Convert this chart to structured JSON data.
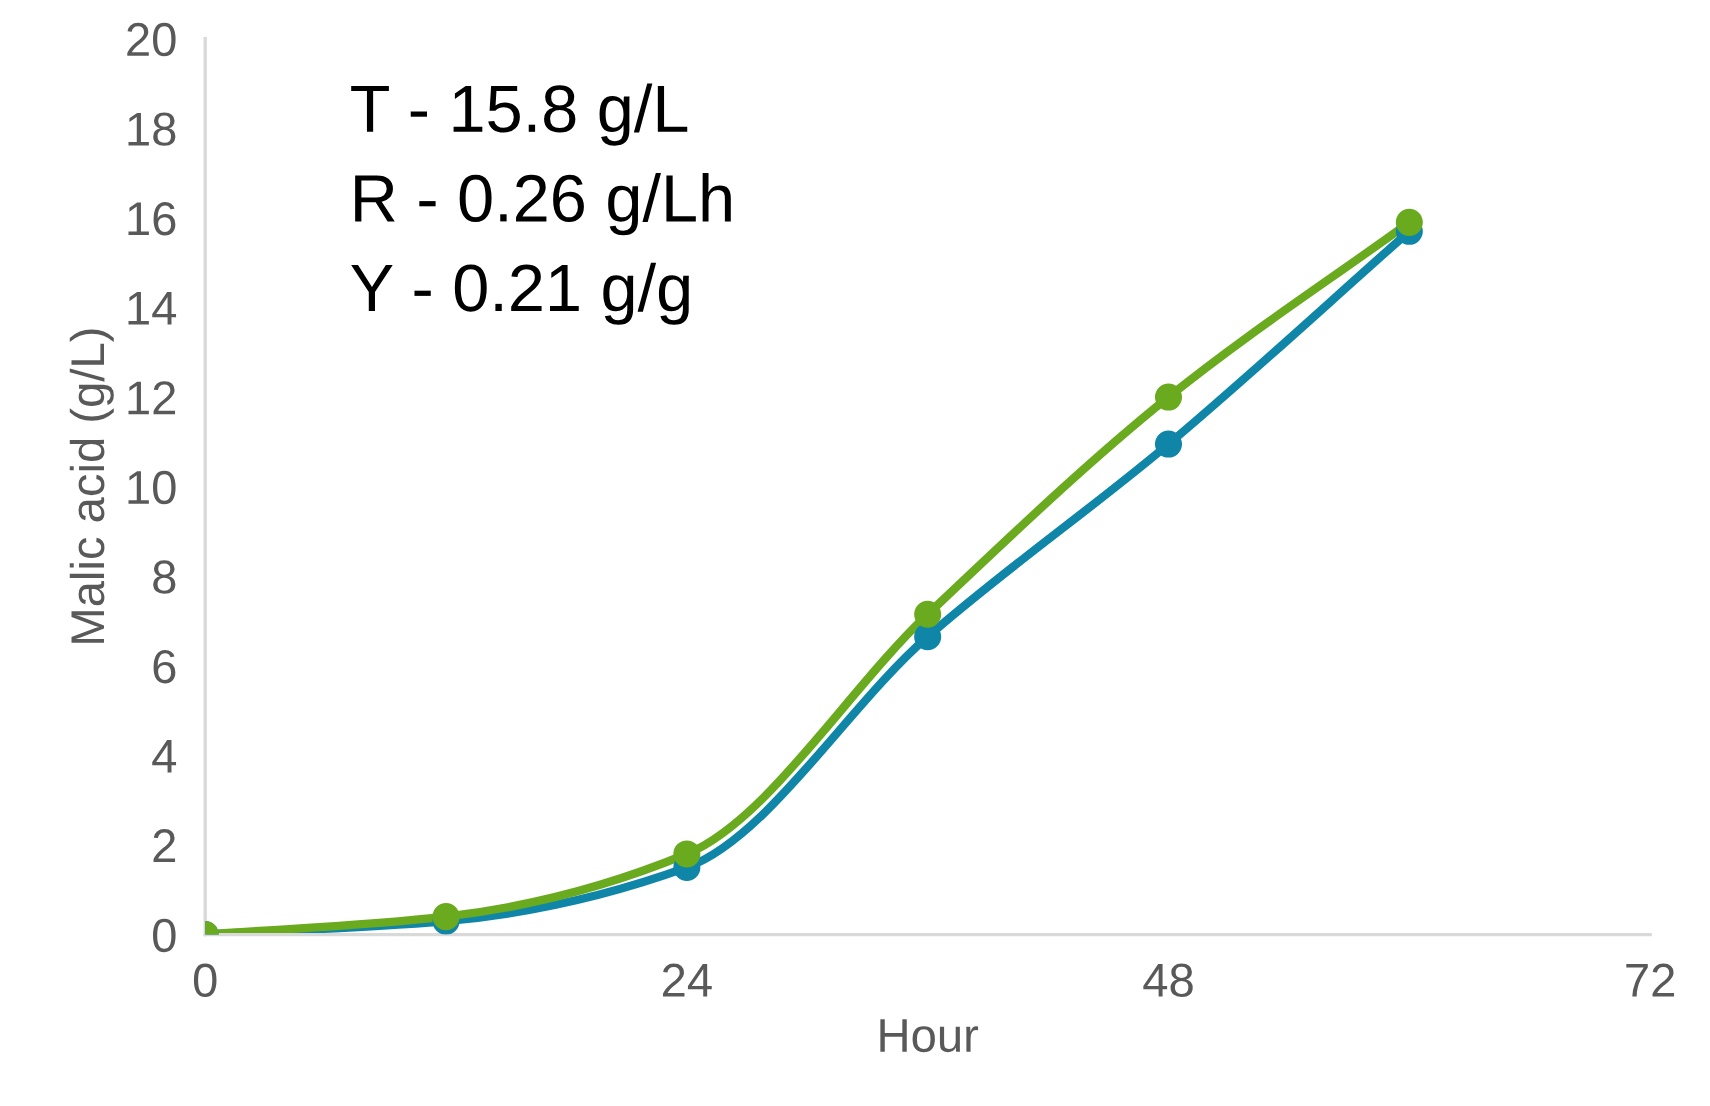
{
  "chart_data": {
    "type": "line",
    "xlabel": "Hour",
    "ylabel": "Malic acid (g/L)",
    "x": [
      0,
      12,
      24,
      36,
      48,
      60
    ],
    "series": [
      {
        "color": "#0f86a8",
        "values": [
          0,
          0.3,
          1.5,
          6.65,
          10.95,
          15.7
        ]
      },
      {
        "color": "#6aaa1e",
        "values": [
          0,
          0.4,
          1.8,
          7.15,
          12.0,
          15.9
        ]
      }
    ],
    "xlim": [
      0,
      72
    ],
    "xticks": [
      0,
      24,
      48,
      72
    ],
    "ylim": [
      0,
      20
    ],
    "yticks": [
      0,
      2,
      4,
      6,
      8,
      10,
      12,
      14,
      16,
      18,
      20
    ],
    "grid": false,
    "legend": false,
    "marker": "circle",
    "line_style": "solid",
    "annotations": [
      "T - 15.8 g/L",
      "R - 0.26 g/Lh",
      "Y - 0.21 g/g"
    ]
  }
}
